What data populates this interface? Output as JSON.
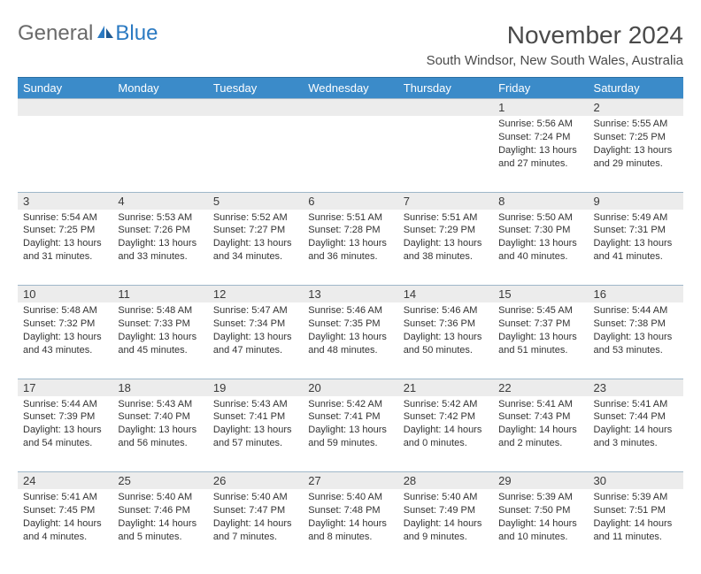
{
  "brand": {
    "first": "General",
    "second": "Blue"
  },
  "title": "November 2024",
  "location": "South Windsor, New South Wales, Australia",
  "colors": {
    "header_bg": "#3b8bc9",
    "header_text": "#ffffff",
    "daynum_bg": "#ececec",
    "daynum_border": "#9fb7c9",
    "body_text": "#333333",
    "title_text": "#4a4a4a",
    "brand_gray": "#6a6a6a",
    "brand_blue": "#2b7ac2"
  },
  "typography": {
    "title_fontsize": 28,
    "location_fontsize": 15,
    "dayheader_fontsize": 13,
    "daynum_fontsize": 13,
    "cell_fontsize": 11
  },
  "day_headers": [
    "Sunday",
    "Monday",
    "Tuesday",
    "Wednesday",
    "Thursday",
    "Friday",
    "Saturday"
  ],
  "weeks": [
    [
      {
        "day": "",
        "sunrise": "",
        "sunset": "",
        "daylight": ""
      },
      {
        "day": "",
        "sunrise": "",
        "sunset": "",
        "daylight": ""
      },
      {
        "day": "",
        "sunrise": "",
        "sunset": "",
        "daylight": ""
      },
      {
        "day": "",
        "sunrise": "",
        "sunset": "",
        "daylight": ""
      },
      {
        "day": "",
        "sunrise": "",
        "sunset": "",
        "daylight": ""
      },
      {
        "day": "1",
        "sunrise": "Sunrise: 5:56 AM",
        "sunset": "Sunset: 7:24 PM",
        "daylight": "Daylight: 13 hours and 27 minutes."
      },
      {
        "day": "2",
        "sunrise": "Sunrise: 5:55 AM",
        "sunset": "Sunset: 7:25 PM",
        "daylight": "Daylight: 13 hours and 29 minutes."
      }
    ],
    [
      {
        "day": "3",
        "sunrise": "Sunrise: 5:54 AM",
        "sunset": "Sunset: 7:25 PM",
        "daylight": "Daylight: 13 hours and 31 minutes."
      },
      {
        "day": "4",
        "sunrise": "Sunrise: 5:53 AM",
        "sunset": "Sunset: 7:26 PM",
        "daylight": "Daylight: 13 hours and 33 minutes."
      },
      {
        "day": "5",
        "sunrise": "Sunrise: 5:52 AM",
        "sunset": "Sunset: 7:27 PM",
        "daylight": "Daylight: 13 hours and 34 minutes."
      },
      {
        "day": "6",
        "sunrise": "Sunrise: 5:51 AM",
        "sunset": "Sunset: 7:28 PM",
        "daylight": "Daylight: 13 hours and 36 minutes."
      },
      {
        "day": "7",
        "sunrise": "Sunrise: 5:51 AM",
        "sunset": "Sunset: 7:29 PM",
        "daylight": "Daylight: 13 hours and 38 minutes."
      },
      {
        "day": "8",
        "sunrise": "Sunrise: 5:50 AM",
        "sunset": "Sunset: 7:30 PM",
        "daylight": "Daylight: 13 hours and 40 minutes."
      },
      {
        "day": "9",
        "sunrise": "Sunrise: 5:49 AM",
        "sunset": "Sunset: 7:31 PM",
        "daylight": "Daylight: 13 hours and 41 minutes."
      }
    ],
    [
      {
        "day": "10",
        "sunrise": "Sunrise: 5:48 AM",
        "sunset": "Sunset: 7:32 PM",
        "daylight": "Daylight: 13 hours and 43 minutes."
      },
      {
        "day": "11",
        "sunrise": "Sunrise: 5:48 AM",
        "sunset": "Sunset: 7:33 PM",
        "daylight": "Daylight: 13 hours and 45 minutes."
      },
      {
        "day": "12",
        "sunrise": "Sunrise: 5:47 AM",
        "sunset": "Sunset: 7:34 PM",
        "daylight": "Daylight: 13 hours and 47 minutes."
      },
      {
        "day": "13",
        "sunrise": "Sunrise: 5:46 AM",
        "sunset": "Sunset: 7:35 PM",
        "daylight": "Daylight: 13 hours and 48 minutes."
      },
      {
        "day": "14",
        "sunrise": "Sunrise: 5:46 AM",
        "sunset": "Sunset: 7:36 PM",
        "daylight": "Daylight: 13 hours and 50 minutes."
      },
      {
        "day": "15",
        "sunrise": "Sunrise: 5:45 AM",
        "sunset": "Sunset: 7:37 PM",
        "daylight": "Daylight: 13 hours and 51 minutes."
      },
      {
        "day": "16",
        "sunrise": "Sunrise: 5:44 AM",
        "sunset": "Sunset: 7:38 PM",
        "daylight": "Daylight: 13 hours and 53 minutes."
      }
    ],
    [
      {
        "day": "17",
        "sunrise": "Sunrise: 5:44 AM",
        "sunset": "Sunset: 7:39 PM",
        "daylight": "Daylight: 13 hours and 54 minutes."
      },
      {
        "day": "18",
        "sunrise": "Sunrise: 5:43 AM",
        "sunset": "Sunset: 7:40 PM",
        "daylight": "Daylight: 13 hours and 56 minutes."
      },
      {
        "day": "19",
        "sunrise": "Sunrise: 5:43 AM",
        "sunset": "Sunset: 7:41 PM",
        "daylight": "Daylight: 13 hours and 57 minutes."
      },
      {
        "day": "20",
        "sunrise": "Sunrise: 5:42 AM",
        "sunset": "Sunset: 7:41 PM",
        "daylight": "Daylight: 13 hours and 59 minutes."
      },
      {
        "day": "21",
        "sunrise": "Sunrise: 5:42 AM",
        "sunset": "Sunset: 7:42 PM",
        "daylight": "Daylight: 14 hours and 0 minutes."
      },
      {
        "day": "22",
        "sunrise": "Sunrise: 5:41 AM",
        "sunset": "Sunset: 7:43 PM",
        "daylight": "Daylight: 14 hours and 2 minutes."
      },
      {
        "day": "23",
        "sunrise": "Sunrise: 5:41 AM",
        "sunset": "Sunset: 7:44 PM",
        "daylight": "Daylight: 14 hours and 3 minutes."
      }
    ],
    [
      {
        "day": "24",
        "sunrise": "Sunrise: 5:41 AM",
        "sunset": "Sunset: 7:45 PM",
        "daylight": "Daylight: 14 hours and 4 minutes."
      },
      {
        "day": "25",
        "sunrise": "Sunrise: 5:40 AM",
        "sunset": "Sunset: 7:46 PM",
        "daylight": "Daylight: 14 hours and 5 minutes."
      },
      {
        "day": "26",
        "sunrise": "Sunrise: 5:40 AM",
        "sunset": "Sunset: 7:47 PM",
        "daylight": "Daylight: 14 hours and 7 minutes."
      },
      {
        "day": "27",
        "sunrise": "Sunrise: 5:40 AM",
        "sunset": "Sunset: 7:48 PM",
        "daylight": "Daylight: 14 hours and 8 minutes."
      },
      {
        "day": "28",
        "sunrise": "Sunrise: 5:40 AM",
        "sunset": "Sunset: 7:49 PM",
        "daylight": "Daylight: 14 hours and 9 minutes."
      },
      {
        "day": "29",
        "sunrise": "Sunrise: 5:39 AM",
        "sunset": "Sunset: 7:50 PM",
        "daylight": "Daylight: 14 hours and 10 minutes."
      },
      {
        "day": "30",
        "sunrise": "Sunrise: 5:39 AM",
        "sunset": "Sunset: 7:51 PM",
        "daylight": "Daylight: 14 hours and 11 minutes."
      }
    ]
  ]
}
